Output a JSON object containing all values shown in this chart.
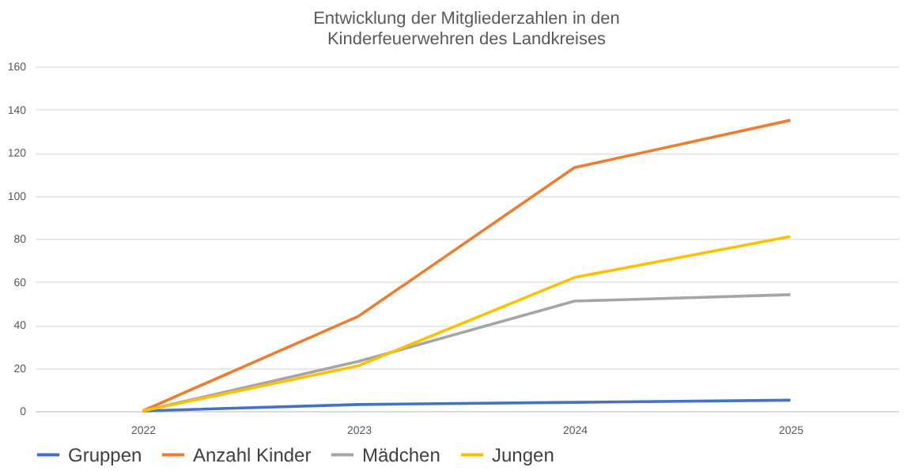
{
  "chart_data": {
    "type": "line",
    "title": [
      "Entwicklung der Mitgliederzahlen in den",
      "Kinderfeuerwehren des Landkreises"
    ],
    "categories": [
      "2022",
      "2023",
      "2024",
      "2025"
    ],
    "series": [
      {
        "name": "Gruppen",
        "color": "#4472c4",
        "values": [
          0,
          3,
          4,
          5
        ]
      },
      {
        "name": "Anzahl Kinder",
        "color": "#ed7d31",
        "values": [
          0,
          44,
          113,
          135
        ]
      },
      {
        "name": "Mädchen",
        "color": "#a5a5a5",
        "values": [
          0,
          23,
          51,
          54
        ]
      },
      {
        "name": "Jungen",
        "color": "#ffc000",
        "values": [
          0,
          21,
          62,
          81
        ]
      }
    ],
    "ylim": [
      0,
      160
    ],
    "yticks": [
      0,
      20,
      40,
      60,
      80,
      100,
      120,
      140,
      160
    ],
    "grid": "y",
    "legend": "bottom",
    "marker": "none",
    "line_style": "solid"
  }
}
